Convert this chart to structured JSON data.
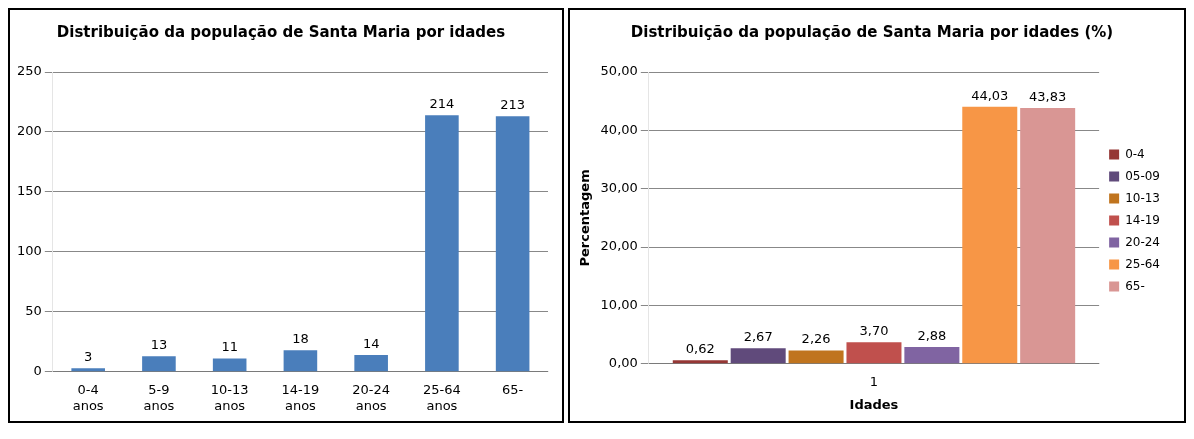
{
  "chart_data": [
    {
      "type": "bar",
      "title": "Distribuição da população de Santa Maria por idades",
      "categories": [
        "0-4 anos",
        "5-9 anos",
        "10-13 anos",
        "14-19 anos",
        "20-24 anos",
        "25-64 anos",
        "65-"
      ],
      "values": [
        3,
        13,
        11,
        18,
        14,
        214,
        213
      ],
      "color": "#4a7ebb",
      "ylim": [
        0,
        250
      ],
      "yticks": [
        0,
        50,
        100,
        150,
        200,
        250
      ],
      "grid": "y",
      "data_labels": true
    },
    {
      "type": "bar",
      "title": "Distribuição da população de Santa Maria por idades (%)",
      "xlabel": "Idades",
      "ylabel": "Percentagem",
      "categories": [
        "1"
      ],
      "series": [
        {
          "name": "0-4",
          "color": "#953735",
          "values": [
            0.62
          ],
          "value_labels": [
            "0,62"
          ]
        },
        {
          "name": "05-09",
          "color": "#604a7b",
          "values": [
            2.67
          ],
          "value_labels": [
            "2,67"
          ]
        },
        {
          "name": "10-13",
          "color": "#c0741e",
          "values": [
            2.26
          ],
          "value_labels": [
            "2,26"
          ]
        },
        {
          "name": "14-19",
          "color": "#c0504d",
          "values": [
            3.7
          ],
          "value_labels": [
            "3,70"
          ]
        },
        {
          "name": "20-24",
          "color": "#8064a2",
          "values": [
            2.88
          ],
          "value_labels": [
            "2,88"
          ]
        },
        {
          "name": "25-64",
          "color": "#f79646",
          "values": [
            44.03
          ],
          "value_labels": [
            "44,03"
          ]
        },
        {
          "name": "65-",
          "color": "#d99694",
          "values": [
            43.83
          ],
          "value_labels": [
            "43,83"
          ]
        }
      ],
      "ylim": [
        0,
        50
      ],
      "yticks": [
        {
          "value": 0,
          "label": "0,00"
        },
        {
          "value": 10,
          "label": "10,00"
        },
        {
          "value": 20,
          "label": "20,00"
        },
        {
          "value": 30,
          "label": "30,00"
        },
        {
          "value": 40,
          "label": "40,00"
        },
        {
          "value": 50,
          "label": "50,00"
        }
      ],
      "grid": "y",
      "legend": "right"
    }
  ]
}
